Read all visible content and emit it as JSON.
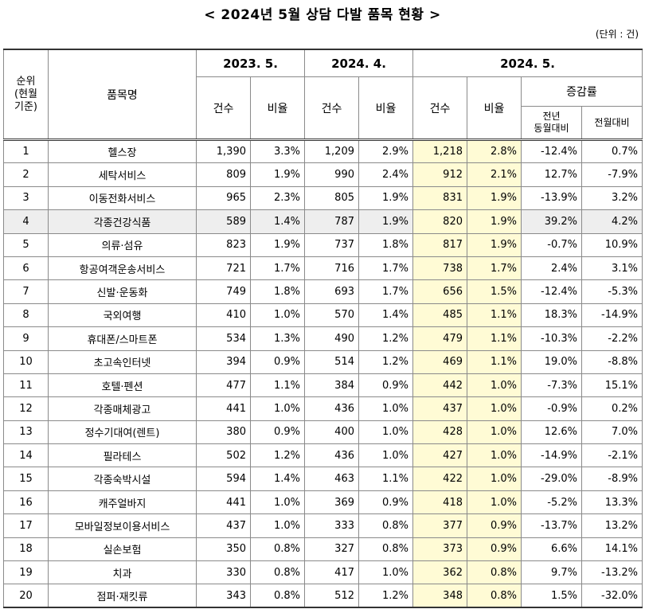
{
  "title": "< 2024년 5월 상담 다발 품목 현황 >",
  "unit": "(단위 : 건)",
  "headers": {
    "rank": "순위\n(현월\n기준)",
    "rank_lines": [
      "순위",
      "(현월",
      "기준)"
    ],
    "item": "품목명",
    "periods": [
      "2023. 5.",
      "2024. 4.",
      "2024. 5."
    ],
    "count": "건수",
    "ratio": "비율",
    "growth": "증감률",
    "yoy_lines": [
      "전년",
      "동월대비"
    ],
    "mom": "전월대비"
  },
  "rows": [
    {
      "rank": "1",
      "item": "헬스장",
      "c2305": "1,390",
      "r2305": "3.3%",
      "c2404": "1,209",
      "r2404": "2.9%",
      "c2405": "1,218",
      "r2405": "2.8%",
      "yoy": "-12.4%",
      "mom": "0.7%"
    },
    {
      "rank": "2",
      "item": "세탁서비스",
      "c2305": "809",
      "r2305": "1.9%",
      "c2404": "990",
      "r2404": "2.4%",
      "c2405": "912",
      "r2405": "2.1%",
      "yoy": "12.7%",
      "mom": "-7.9%"
    },
    {
      "rank": "3",
      "item": "이동전화서비스",
      "c2305": "965",
      "r2305": "2.3%",
      "c2404": "805",
      "r2404": "1.9%",
      "c2405": "831",
      "r2405": "1.9%",
      "yoy": "-13.9%",
      "mom": "3.2%"
    },
    {
      "rank": "4",
      "item": "각종건강식품",
      "c2305": "589",
      "r2305": "1.4%",
      "c2404": "787",
      "r2404": "1.9%",
      "c2405": "820",
      "r2405": "1.9%",
      "yoy": "39.2%",
      "mom": "4.2%"
    },
    {
      "rank": "5",
      "item": "의류·섬유",
      "c2305": "823",
      "r2305": "1.9%",
      "c2404": "737",
      "r2404": "1.8%",
      "c2405": "817",
      "r2405": "1.9%",
      "yoy": "-0.7%",
      "mom": "10.9%"
    },
    {
      "rank": "6",
      "item": "항공여객운송서비스",
      "c2305": "721",
      "r2305": "1.7%",
      "c2404": "716",
      "r2404": "1.7%",
      "c2405": "738",
      "r2405": "1.7%",
      "yoy": "2.4%",
      "mom": "3.1%"
    },
    {
      "rank": "7",
      "item": "신발·운동화",
      "c2305": "749",
      "r2305": "1.8%",
      "c2404": "693",
      "r2404": "1.7%",
      "c2405": "656",
      "r2405": "1.5%",
      "yoy": "-12.4%",
      "mom": "-5.3%"
    },
    {
      "rank": "8",
      "item": "국외여행",
      "c2305": "410",
      "r2305": "1.0%",
      "c2404": "570",
      "r2404": "1.4%",
      "c2405": "485",
      "r2405": "1.1%",
      "yoy": "18.3%",
      "mom": "-14.9%"
    },
    {
      "rank": "9",
      "item": "휴대폰/스마트폰",
      "c2305": "534",
      "r2305": "1.3%",
      "c2404": "490",
      "r2404": "1.2%",
      "c2405": "479",
      "r2405": "1.1%",
      "yoy": "-10.3%",
      "mom": "-2.2%"
    },
    {
      "rank": "10",
      "item": "초고속인터넷",
      "c2305": "394",
      "r2305": "0.9%",
      "c2404": "514",
      "r2404": "1.2%",
      "c2405": "469",
      "r2405": "1.1%",
      "yoy": "19.0%",
      "mom": "-8.8%"
    },
    {
      "rank": "11",
      "item": "호텔·펜션",
      "c2305": "477",
      "r2305": "1.1%",
      "c2404": "384",
      "r2404": "0.9%",
      "c2405": "442",
      "r2405": "1.0%",
      "yoy": "-7.3%",
      "mom": "15.1%"
    },
    {
      "rank": "12",
      "item": "각종매체광고",
      "c2305": "441",
      "r2305": "1.0%",
      "c2404": "436",
      "r2404": "1.0%",
      "c2405": "437",
      "r2405": "1.0%",
      "yoy": "-0.9%",
      "mom": "0.2%"
    },
    {
      "rank": "13",
      "item": "정수기대여(렌트)",
      "c2305": "380",
      "r2305": "0.9%",
      "c2404": "400",
      "r2404": "1.0%",
      "c2405": "428",
      "r2405": "1.0%",
      "yoy": "12.6%",
      "mom": "7.0%"
    },
    {
      "rank": "14",
      "item": "필라테스",
      "c2305": "502",
      "r2305": "1.2%",
      "c2404": "436",
      "r2404": "1.0%",
      "c2405": "427",
      "r2405": "1.0%",
      "yoy": "-14.9%",
      "mom": "-2.1%"
    },
    {
      "rank": "15",
      "item": "각종숙박시설",
      "c2305": "594",
      "r2305": "1.4%",
      "c2404": "463",
      "r2404": "1.1%",
      "c2405": "422",
      "r2405": "1.0%",
      "yoy": "-29.0%",
      "mom": "-8.9%"
    },
    {
      "rank": "16",
      "item": "캐주얼바지",
      "c2305": "441",
      "r2305": "1.0%",
      "c2404": "369",
      "r2404": "0.9%",
      "c2405": "418",
      "r2405": "1.0%",
      "yoy": "-5.2%",
      "mom": "13.3%"
    },
    {
      "rank": "17",
      "item": "모바일정보이용서비스",
      "c2305": "437",
      "r2305": "1.0%",
      "c2404": "333",
      "r2404": "0.8%",
      "c2405": "377",
      "r2405": "0.9%",
      "yoy": "-13.7%",
      "mom": "13.2%"
    },
    {
      "rank": "18",
      "item": "실손보험",
      "c2305": "350",
      "r2305": "0.8%",
      "c2404": "327",
      "r2404": "0.8%",
      "c2405": "373",
      "r2405": "0.9%",
      "yoy": "6.6%",
      "mom": "14.1%"
    },
    {
      "rank": "19",
      "item": "치과",
      "c2305": "330",
      "r2305": "0.8%",
      "c2404": "417",
      "r2404": "1.0%",
      "c2405": "362",
      "r2405": "0.8%",
      "yoy": "9.7%",
      "mom": "-13.2%"
    },
    {
      "rank": "20",
      "item": "점퍼·재킷류",
      "c2305": "343",
      "r2305": "0.8%",
      "c2404": "512",
      "r2404": "1.2%",
      "c2405": "348",
      "r2405": "0.8%",
      "yoy": "1.5%",
      "mom": "-32.0%"
    }
  ],
  "colors": {
    "highlight": "#fffbd5",
    "shaded_row": "#eeeeee",
    "border": "#8a8a8a"
  },
  "shaded_row_rank": "4"
}
